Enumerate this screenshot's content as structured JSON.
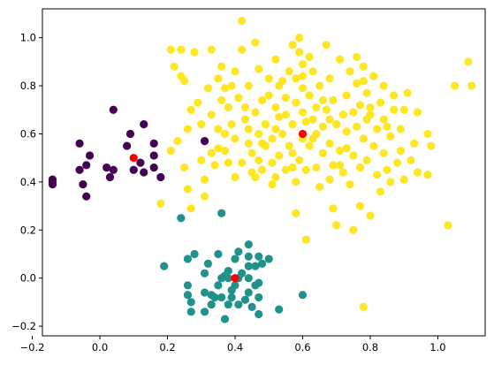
{
  "chart_data": {
    "type": "scatter",
    "title": "",
    "xlabel": "",
    "ylabel": "",
    "xlim": [
      -0.17,
      1.14
    ],
    "ylim": [
      -0.24,
      1.12
    ],
    "grid": false,
    "xticks": [
      -0.2,
      0.0,
      0.2,
      0.4,
      0.6,
      0.8,
      1.0
    ],
    "xtick_labels": [
      "−0.2",
      "0.0",
      "0.2",
      "0.4",
      "0.6",
      "0.8",
      "1.0"
    ],
    "yticks": [
      -0.2,
      0.0,
      0.2,
      0.4,
      0.6,
      0.8,
      1.0
    ],
    "ytick_labels": [
      "−0.2",
      "0.0",
      "0.2",
      "0.4",
      "0.6",
      "0.8",
      "1.0"
    ],
    "colors": {
      "cluster_0": "#440154",
      "cluster_1": "#21918c",
      "cluster_2": "#fde725",
      "centroid": "#ff0000",
      "axes": "#000000",
      "background": "#ffffff"
    },
    "series": [
      {
        "color_key": "cluster_0",
        "points": [
          [
            -0.14,
            0.41
          ],
          [
            -0.14,
            0.4
          ],
          [
            -0.14,
            0.39
          ],
          [
            -0.06,
            0.56
          ],
          [
            -0.06,
            0.45
          ],
          [
            -0.05,
            0.39
          ],
          [
            -0.04,
            0.47
          ],
          [
            -0.04,
            0.34
          ],
          [
            -0.03,
            0.51
          ],
          [
            0.02,
            0.46
          ],
          [
            0.03,
            0.42
          ],
          [
            0.04,
            0.45
          ],
          [
            0.04,
            0.7
          ],
          [
            0.08,
            0.55
          ],
          [
            0.09,
            0.6
          ],
          [
            0.1,
            0.45
          ],
          [
            0.12,
            0.48
          ],
          [
            0.13,
            0.64
          ],
          [
            0.13,
            0.44
          ],
          [
            0.16,
            0.56
          ],
          [
            0.16,
            0.51
          ],
          [
            0.16,
            0.46
          ],
          [
            0.18,
            0.42
          ],
          [
            0.31,
            0.57
          ]
        ]
      },
      {
        "color_key": "cluster_1",
        "points": [
          [
            0.19,
            0.05
          ],
          [
            0.24,
            0.25
          ],
          [
            0.26,
            0.08
          ],
          [
            0.26,
            -0.03
          ],
          [
            0.26,
            -0.07
          ],
          [
            0.27,
            -0.1
          ],
          [
            0.27,
            -0.14
          ],
          [
            0.28,
            0.1
          ],
          [
            0.31,
            -0.06
          ],
          [
            0.31,
            -0.14
          ],
          [
            0.32,
            0.06
          ],
          [
            0.33,
            -0.07
          ],
          [
            0.33,
            -0.11
          ],
          [
            0.34,
            -0.08
          ],
          [
            0.35,
            -0.03
          ],
          [
            0.35,
            0.1
          ],
          [
            0.36,
            0.27
          ],
          [
            0.36,
            -0.0
          ],
          [
            0.36,
            -0.08
          ],
          [
            0.37,
            -0.17
          ],
          [
            0.38,
            -0.0
          ],
          [
            0.38,
            0.03
          ],
          [
            0.38,
            -0.11
          ],
          [
            0.39,
            -0.08
          ],
          [
            0.4,
            0.08
          ],
          [
            0.4,
            -0.03
          ],
          [
            0.41,
            -0.0
          ],
          [
            0.41,
            -0.11
          ],
          [
            0.41,
            0.11
          ],
          [
            0.42,
            0.02
          ],
          [
            0.43,
            -0.09
          ],
          [
            0.44,
            0.14
          ],
          [
            0.44,
            0.05
          ],
          [
            0.44,
            0.09
          ],
          [
            0.44,
            -0.0
          ],
          [
            0.44,
            -0.06
          ],
          [
            0.45,
            -0.12
          ],
          [
            0.46,
            0.05
          ],
          [
            0.46,
            -0.03
          ],
          [
            0.47,
            0.09
          ],
          [
            0.47,
            -0.02
          ],
          [
            0.47,
            -0.08
          ],
          [
            0.47,
            -0.15
          ],
          [
            0.48,
            0.06
          ],
          [
            0.5,
            0.08
          ],
          [
            0.53,
            -0.13
          ],
          [
            0.6,
            -0.07
          ],
          [
            0.31,
            0.02
          ],
          [
            0.39,
            -0.05
          ],
          [
            0.37,
            0.01
          ]
        ]
      },
      {
        "color_key": "cluster_2",
        "points": [
          [
            0.18,
            0.31
          ],
          [
            0.21,
            0.53
          ],
          [
            0.21,
            0.95
          ],
          [
            0.22,
            0.88
          ],
          [
            0.23,
            0.57
          ],
          [
            0.24,
            0.84
          ],
          [
            0.24,
            0.95
          ],
          [
            0.25,
            0.82
          ],
          [
            0.25,
            0.46
          ],
          [
            0.26,
            0.62
          ],
          [
            0.26,
            0.37
          ],
          [
            0.27,
            0.7
          ],
          [
            0.27,
            0.29
          ],
          [
            0.28,
            0.94
          ],
          [
            0.29,
            0.73
          ],
          [
            0.3,
            0.64
          ],
          [
            0.3,
            0.49
          ],
          [
            0.31,
            0.41
          ],
          [
            0.31,
            0.34
          ],
          [
            0.32,
            0.79
          ],
          [
            0.33,
            0.68
          ],
          [
            0.33,
            0.95
          ],
          [
            0.33,
            0.52
          ],
          [
            0.34,
            0.47
          ],
          [
            0.35,
            0.62
          ],
          [
            0.36,
            0.88
          ],
          [
            0.36,
            0.74
          ],
          [
            0.37,
            0.79
          ],
          [
            0.37,
            0.6
          ],
          [
            0.38,
            0.71
          ],
          [
            0.38,
            0.48
          ],
          [
            0.39,
            0.8
          ],
          [
            0.39,
            0.64
          ],
          [
            0.4,
            0.58
          ],
          [
            0.4,
            0.42
          ],
          [
            0.41,
            0.75
          ],
          [
            0.42,
            0.95
          ],
          [
            0.42,
            1.07
          ],
          [
            0.43,
            0.66
          ],
          [
            0.43,
            0.71
          ],
          [
            0.44,
            0.8
          ],
          [
            0.45,
            0.52
          ],
          [
            0.45,
            0.44
          ],
          [
            0.46,
            0.69
          ],
          [
            0.46,
            0.98
          ],
          [
            0.47,
            0.87
          ],
          [
            0.47,
            0.6
          ],
          [
            0.47,
            0.49
          ],
          [
            0.48,
            0.74
          ],
          [
            0.48,
            0.56
          ],
          [
            0.48,
            0.45
          ],
          [
            0.49,
            0.64
          ],
          [
            0.5,
            0.83
          ],
          [
            0.5,
            0.76
          ],
          [
            0.51,
            0.58
          ],
          [
            0.51,
            0.39
          ],
          [
            0.52,
            0.71
          ],
          [
            0.52,
            0.91
          ],
          [
            0.52,
            0.62
          ],
          [
            0.52,
            0.42
          ],
          [
            0.53,
            0.51
          ],
          [
            0.53,
            0.8
          ],
          [
            0.54,
            0.6
          ],
          [
            0.55,
            0.75
          ],
          [
            0.55,
            0.68
          ],
          [
            0.55,
            0.45
          ],
          [
            0.56,
            0.86
          ],
          [
            0.56,
            0.55
          ],
          [
            0.57,
            0.64
          ],
          [
            0.58,
            0.83
          ],
          [
            0.58,
            0.73
          ],
          [
            0.58,
            0.4
          ],
          [
            0.58,
            0.27
          ],
          [
            0.59,
            1.0
          ],
          [
            0.59,
            0.94
          ],
          [
            0.59,
            0.49
          ],
          [
            0.6,
            0.79
          ],
          [
            0.6,
            0.69
          ],
          [
            0.6,
            0.58
          ],
          [
            0.6,
            0.89
          ],
          [
            0.61,
            0.65
          ],
          [
            0.61,
            0.45
          ],
          [
            0.61,
            0.16
          ],
          [
            0.62,
            0.76
          ],
          [
            0.62,
            0.55
          ],
          [
            0.63,
            0.86
          ],
          [
            0.63,
            0.66
          ],
          [
            0.64,
            0.71
          ],
          [
            0.64,
            0.6
          ],
          [
            0.64,
            0.46
          ],
          [
            0.65,
            0.8
          ],
          [
            0.65,
            0.38
          ],
          [
            0.66,
            0.52
          ],
          [
            0.66,
            0.63
          ],
          [
            0.67,
            0.97
          ],
          [
            0.67,
            0.7
          ],
          [
            0.68,
            0.83
          ],
          [
            0.68,
            0.56
          ],
          [
            0.68,
            0.41
          ],
          [
            0.69,
            0.74
          ],
          [
            0.69,
            0.47
          ],
          [
            0.69,
            0.29
          ],
          [
            0.7,
            0.64
          ],
          [
            0.7,
            0.22
          ],
          [
            0.71,
            0.91
          ],
          [
            0.71,
            0.53
          ],
          [
            0.72,
            0.44
          ],
          [
            0.72,
            0.68
          ],
          [
            0.73,
            0.76
          ],
          [
            0.73,
            0.61
          ],
          [
            0.74,
            0.86
          ],
          [
            0.74,
            0.39
          ],
          [
            0.75,
            0.69
          ],
          [
            0.75,
            0.51
          ],
          [
            0.75,
            0.2
          ],
          [
            0.76,
            0.92
          ],
          [
            0.76,
            0.81
          ],
          [
            0.76,
            0.63
          ],
          [
            0.77,
            0.72
          ],
          [
            0.77,
            0.46
          ],
          [
            0.77,
            0.3
          ],
          [
            0.78,
            0.58
          ],
          [
            0.78,
            0.88
          ],
          [
            0.78,
            -0.12
          ],
          [
            0.79,
            0.77
          ],
          [
            0.79,
            0.66
          ],
          [
            0.79,
            0.49
          ],
          [
            0.8,
            0.26
          ],
          [
            0.8,
            0.71
          ],
          [
            0.81,
            0.55
          ],
          [
            0.81,
            0.84
          ],
          [
            0.82,
            0.43
          ],
          [
            0.82,
            0.62
          ],
          [
            0.83,
            0.73
          ],
          [
            0.83,
            0.36
          ],
          [
            0.84,
            0.8
          ],
          [
            0.84,
            0.52
          ],
          [
            0.84,
            0.66
          ],
          [
            0.85,
            0.45
          ],
          [
            0.86,
            0.59
          ],
          [
            0.86,
            0.4
          ],
          [
            0.87,
            0.76
          ],
          [
            0.87,
            0.7
          ],
          [
            0.88,
            0.48
          ],
          [
            0.89,
            0.62
          ],
          [
            0.89,
            0.53
          ],
          [
            0.9,
            0.7
          ],
          [
            0.9,
            0.41
          ],
          [
            0.91,
            0.77
          ],
          [
            0.92,
            0.49
          ],
          [
            0.93,
            0.56
          ],
          [
            0.94,
            0.44
          ],
          [
            0.94,
            0.69
          ],
          [
            0.97,
            0.6
          ],
          [
            0.98,
            0.55
          ],
          [
            0.97,
            0.43
          ],
          [
            1.03,
            0.22
          ],
          [
            1.05,
            0.8
          ],
          [
            1.09,
            0.9
          ],
          [
            1.1,
            0.8
          ],
          [
            0.35,
            0.54
          ],
          [
            0.44,
            0.62
          ],
          [
            0.57,
            0.52
          ],
          [
            0.62,
            0.92
          ],
          [
            0.66,
            0.74
          ],
          [
            0.54,
            0.82
          ],
          [
            0.71,
            0.47
          ],
          [
            0.49,
            0.55
          ],
          [
            0.4,
            0.86
          ],
          [
            0.57,
            0.97
          ],
          [
            0.63,
            0.58
          ],
          [
            0.44,
            0.56
          ],
          [
            0.8,
            0.68
          ],
          [
            0.53,
            0.67
          ],
          [
            0.37,
            0.53
          ],
          [
            0.46,
            0.42
          ],
          [
            0.73,
            0.54
          ],
          [
            0.57,
            0.46
          ],
          [
            0.68,
            0.66
          ],
          [
            0.85,
            0.63
          ],
          [
            0.51,
            0.48
          ],
          [
            0.35,
            0.83
          ],
          [
            0.6,
            0.84
          ],
          [
            0.78,
            0.82
          ],
          [
            0.42,
            0.48
          ]
        ]
      },
      {
        "color_key": "centroid",
        "points": [
          [
            0.1,
            0.5
          ],
          [
            0.6,
            0.6
          ],
          [
            0.4,
            0.0
          ]
        ]
      }
    ]
  }
}
